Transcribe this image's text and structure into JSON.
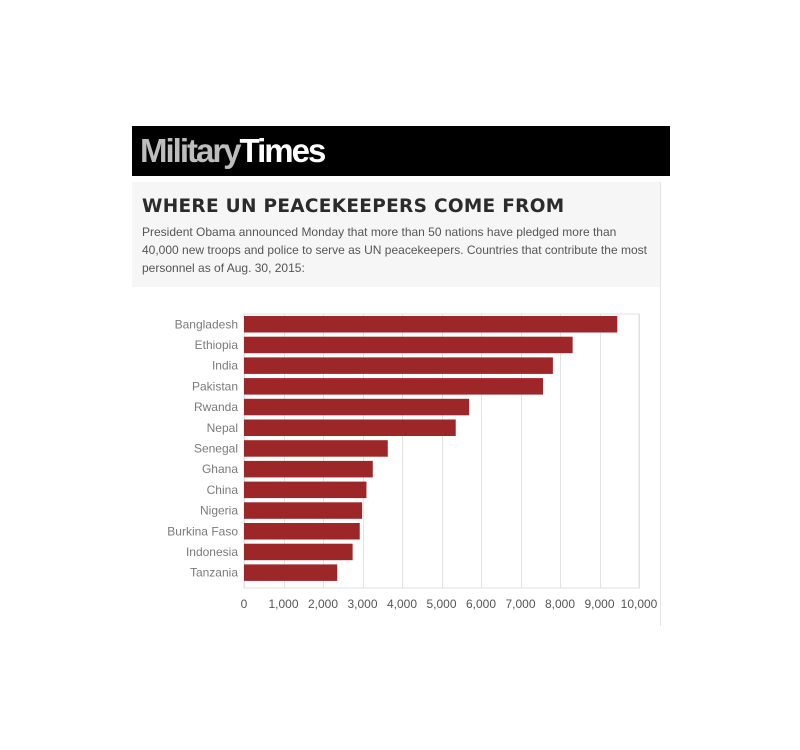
{
  "header": {
    "logo_part1": "Military",
    "logo_part2": "Times"
  },
  "intro": {
    "title": "WHERE UN PEACEKEEPERS COME FROM",
    "description": "President Obama announced Monday that more than 50 nations have pledged more than 40,000 new troops and police to serve as UN peacekeepers. Countries that contribute the most personnel as of Aug. 30, 2015:"
  },
  "chart_data": {
    "type": "bar",
    "orientation": "horizontal",
    "title": "",
    "xlabel": "",
    "ylabel": "",
    "categories": [
      "Bangladesh",
      "Ethiopia",
      "India",
      "Pakistan",
      "Rwanda",
      "Nepal",
      "Senegal",
      "Ghana",
      "China",
      "Nigeria",
      "Burkina Faso",
      "Indonesia",
      "Tanzania"
    ],
    "values": [
      9450,
      8320,
      7820,
      7570,
      5700,
      5360,
      3640,
      3260,
      3100,
      2990,
      2930,
      2750,
      2360
    ],
    "xlim": [
      0,
      10000
    ],
    "xticks": [
      0,
      1000,
      2000,
      3000,
      4000,
      5000,
      6000,
      7000,
      8000,
      9000,
      10000
    ],
    "xtick_labels": [
      "0",
      "1,000",
      "2,000",
      "3,000",
      "4,000",
      "5,000",
      "6,000",
      "7,000",
      "8,000",
      "9,000",
      "10,000"
    ],
    "grid": true,
    "bar_color": "#9c2628",
    "grid_color": "#e2e2e2"
  }
}
